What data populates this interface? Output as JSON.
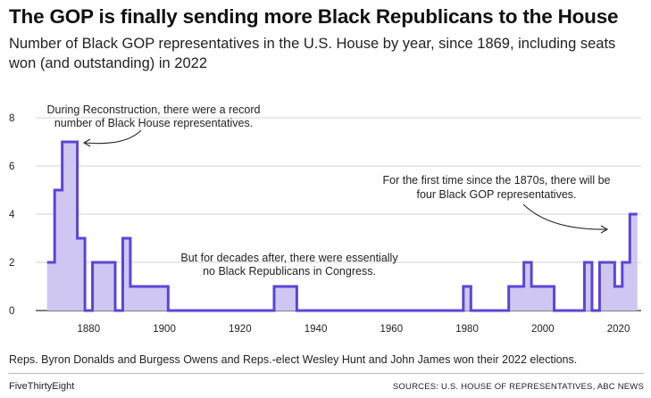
{
  "header": {
    "title": "The GOP is finally sending more Black Republicans to the House",
    "subtitle": "Number of Black GOP representatives in the U.S. House by year, since 1869, including seats won (and outstanding) in 2022"
  },
  "footer": {
    "note": "Reps. Byron Donalds and Burgess Owens and Reps.-elect Wesley Hunt and John James won their 2022 elections.",
    "brand": "FiveThirtyEight",
    "source": "SOURCES: U.S. HOUSE OF REPRESENTATIVES, ABC NEWS"
  },
  "colors": {
    "line": "#5b45d4",
    "fill": "#cfc7f1",
    "grid": "#d3d3d3"
  },
  "chart_data": {
    "type": "area",
    "title": "The GOP is finally sending more Black Republicans to the House",
    "subtitle": "Number of Black GOP representatives in the U.S. House by year, since 1869, including seats won (and outstanding) in 2022",
    "xlabel": "",
    "ylabel": "",
    "xlim": [
      1866,
      2026
    ],
    "ylim": [
      0,
      8
    ],
    "grid": true,
    "step": true,
    "xticks": [
      1880,
      1900,
      1920,
      1940,
      1960,
      1980,
      2000,
      2020
    ],
    "yticks": [
      0,
      2,
      4,
      6,
      8
    ],
    "series": [
      {
        "x": [
          1869,
          1871,
          1873,
          1877,
          1879,
          1881,
          1887,
          1889,
          1891,
          1901,
          1929,
          1935,
          1979,
          1981,
          1991,
          1995,
          1997,
          2003,
          2011,
          2013,
          2015,
          2019,
          2021,
          2023,
          2025
        ],
        "values": [
          2,
          5,
          7,
          3,
          0,
          2,
          0,
          3,
          1,
          0,
          1,
          0,
          1,
          0,
          1,
          2,
          1,
          0,
          2,
          0,
          2,
          1,
          2,
          4,
          4
        ]
      }
    ],
    "annotations": [
      {
        "lines": [
          "During Reconstruction, there were a record",
          "number of Black House representatives."
        ]
      },
      {
        "lines": [
          "But for decades after, there were essentially",
          "no Black Republicans in Congress."
        ]
      },
      {
        "lines": [
          "For the first time since the 1870s, there will be",
          "four Black GOP representatives."
        ]
      }
    ]
  }
}
